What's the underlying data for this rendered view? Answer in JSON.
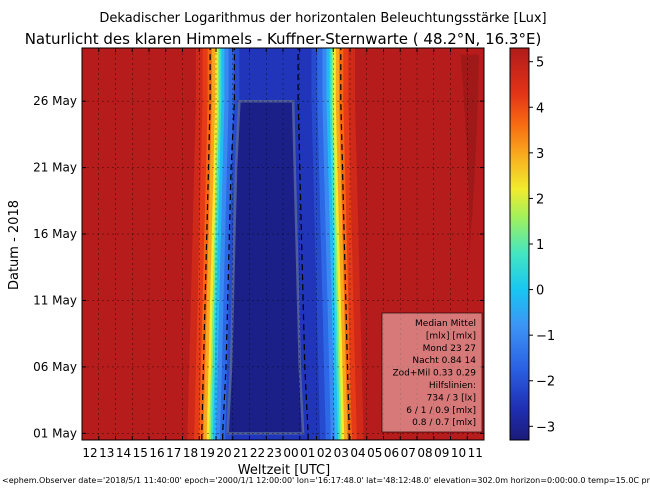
{
  "chart_data": {
    "type": "heatmap",
    "title": "Dekadischer Logarithmus der horizontalen Beleuchtungsstärke [Lux]",
    "subtitle": "Naturlicht des klaren Himmels - Kuffner-Sternwarte ( 48.2°N, 16.3°E)",
    "xlabel": "Weltzeit [UTC]",
    "ylabel": "Datum - 2018",
    "x_ticks": [
      "12",
      "13",
      "14",
      "15",
      "16",
      "17",
      "18",
      "19",
      "20",
      "21",
      "22",
      "23",
      "00",
      "01",
      "02",
      "03",
      "04",
      "05",
      "06",
      "07",
      "08",
      "09",
      "10",
      "11"
    ],
    "y_ticks": [
      {
        "label": "01 May",
        "day": 1
      },
      {
        "label": "06 May",
        "day": 6
      },
      {
        "label": "11 May",
        "day": 11
      },
      {
        "label": "16 May",
        "day": 16
      },
      {
        "label": "21 May",
        "day": 21
      },
      {
        "label": "26 May",
        "day": 26
      }
    ],
    "x_range_hours": [
      12,
      36
    ],
    "y_range_days": [
      0.5,
      30
    ],
    "colorbar": {
      "ticks": [
        "5",
        "4",
        "3",
        "2",
        "1",
        "0",
        "−1",
        "−2",
        "−3"
      ],
      "tick_values": [
        5,
        4,
        3,
        2,
        1,
        0,
        -1,
        -2,
        -3
      ],
      "range": [
        -3.3,
        5.3
      ]
    },
    "contour_rows": [
      {
        "day": 1,
        "night_start": 19.7,
        "night_end": 27.4,
        "deep_start": 20.7,
        "deep_end": 25.2
      },
      {
        "day": 6,
        "night_start": 19.8,
        "night_end": 27.3,
        "deep_start": 20.9,
        "deep_end": 25.0
      },
      {
        "day": 11,
        "night_start": 19.9,
        "night_end": 27.2,
        "deep_start": 21.0,
        "deep_end": 24.9
      },
      {
        "day": 16,
        "night_start": 20.0,
        "night_end": 27.1,
        "deep_start": 21.1,
        "deep_end": 24.8
      },
      {
        "day": 21,
        "night_start": 20.1,
        "night_end": 27.0,
        "deep_start": 21.2,
        "deep_end": 24.7
      },
      {
        "day": 26,
        "night_start": 20.2,
        "night_end": 26.9,
        "deep_start": 21.4,
        "deep_end": 24.6
      }
    ],
    "legend_box": {
      "lines": [
        "Median Mittel",
        "[mlx]  [mlx]",
        "Mond   23  27",
        "Nacht 0.84  14",
        "Zod+Mil 0.33  0.29",
        "Hilfslinien:",
        "734 / 3  [lx]",
        "6 /  1 / 0.9 [mlx]",
        "0.8 / 0.7 [mlx]"
      ],
      "placement": "bottom-right"
    },
    "footer": "<ephem.Observer date='2018/5/1 11:40:00' epoch='2000/1/1 12:00:00' lon='16:17:48.0' lat='48:12:48.0' elevation=302.0m horizon=0:00:00.0 temp=15.0C press"
  }
}
